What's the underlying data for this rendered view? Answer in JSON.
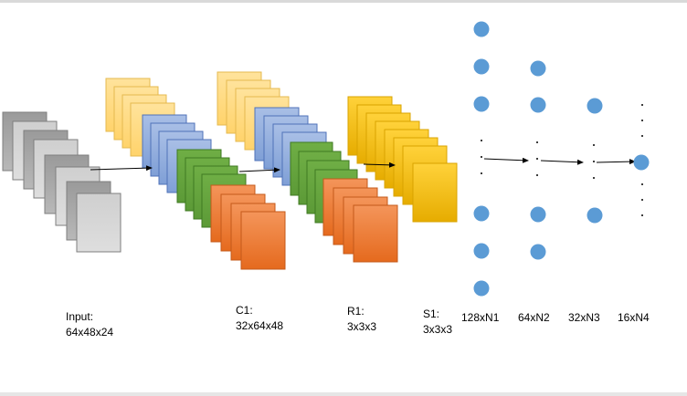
{
  "colors": {
    "input_gray": [
      "#959595",
      "#a8a8a8",
      "#bbbbbb",
      "#c9c9c9"
    ],
    "yellow_light": "#ffd97a",
    "blue": "#8eaadb",
    "green": "#70ad47",
    "orange": "#ed7d31",
    "gold": "#ffc000",
    "node": "#5b9bd5",
    "arrow": "#000000"
  },
  "labels": {
    "input": {
      "line1": "Input:",
      "line2": "64x48x24"
    },
    "c1": {
      "line1": "C1:",
      "line2": "32x64x48"
    },
    "r1": {
      "line1": "R1:",
      "line2": "3x3x3"
    },
    "s1": {
      "line1": "S1:",
      "line2": "3x3x3"
    },
    "n1": "128xN1",
    "n2": "64xN2",
    "n3": "32xN3",
    "n4": "16xN4"
  }
}
